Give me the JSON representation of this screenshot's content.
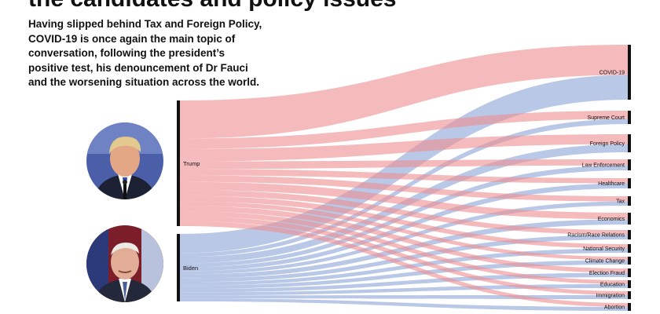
{
  "header": {
    "title": "the candidates and policy issues",
    "intro": "Having slipped behind Tax and Foreign Policy, COVID-19 is once again the main topic of conversation, following the president’s positive test, his denouncement of Dr Fauci and the worsening situation across the world."
  },
  "sources": [
    {
      "id": "trump",
      "label": "Trump",
      "color": "#ee8f93"
    },
    {
      "id": "biden",
      "label": "Biden",
      "color": "#8ea6d6"
    }
  ],
  "issues": [
    "COVID-19",
    "Supreme Court",
    "Foreign Policy",
    "Law Enforcement",
    "Healthcare",
    "Tax",
    "Economics",
    "Racism/Race Relations",
    "National Security",
    "Climate Change",
    "Election Fraud",
    "Education",
    "Immigration",
    "Abortion"
  ],
  "portraits": [
    {
      "name": "trump-portrait",
      "colors": {
        "bg": "#4a5fa8",
        "face": "#e3a785",
        "hair": "#e2c98e",
        "suit": "#1c2233",
        "shirt": "#ffffff",
        "tie": "#2a4aa6"
      }
    },
    {
      "name": "biden-portrait",
      "colors": {
        "bg": "#7c1e2a",
        "face": "#e2ad96",
        "hair": "#eceae5",
        "suit": "#23293a",
        "shirt": "#ffffff",
        "tie": "#4b5e9c"
      }
    }
  ]
}
